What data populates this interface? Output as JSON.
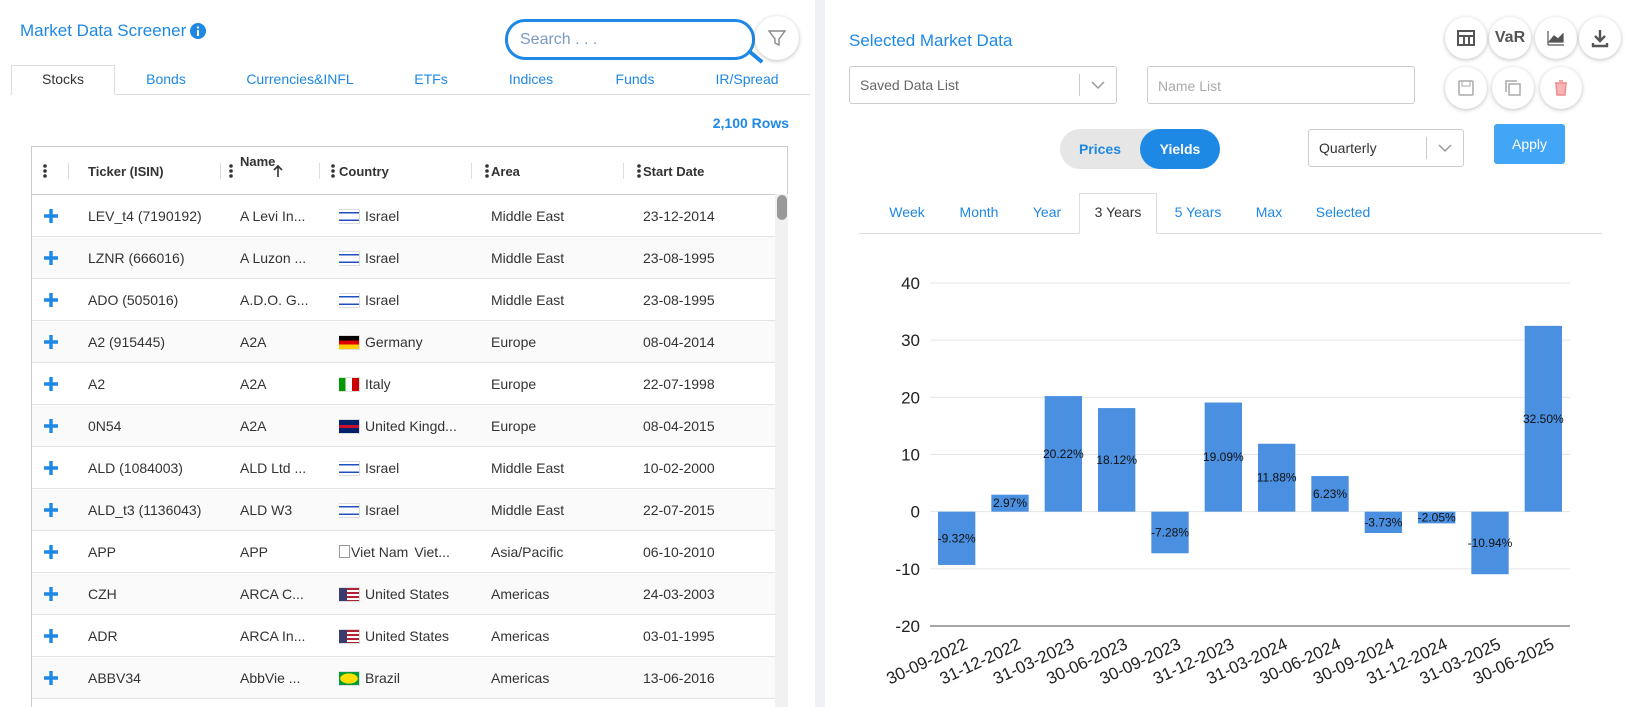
{
  "left": {
    "title": "Market Data Screener",
    "search_placeholder": "Search . . .",
    "tabs": [
      "Stocks",
      "Bonds",
      "Currencies&INFL",
      "ETFs",
      "Indices",
      "Funds",
      "IR/Spread"
    ],
    "active_tab": 0,
    "rows_count": "2,100 Rows",
    "table": {
      "columns": [
        "Ticker (ISIN)",
        "Name",
        "Country",
        "Area",
        "Start Date"
      ],
      "sort_column": 1,
      "rows": [
        [
          "LEV_t4 (7190192)",
          "A Levi In...",
          "Israel",
          "Middle East",
          "23-12-2014"
        ],
        [
          "LZNR (666016)",
          "A Luzon ...",
          "Israel",
          "Middle East",
          "23-08-1995"
        ],
        [
          "ADO (505016)",
          "A.D.O. G...",
          "Israel",
          "Middle East",
          "23-08-1995"
        ],
        [
          "A2 (915445)",
          "A2A",
          "Germany",
          "Europe",
          "08-04-2014"
        ],
        [
          "A2",
          "A2A",
          "Italy",
          "Europe",
          "22-07-1998"
        ],
        [
          "0N54",
          "A2A",
          "United Kingd...",
          "Europe",
          "08-04-2015"
        ],
        [
          "ALD (1084003)",
          "ALD Ltd ...",
          "Israel",
          "Middle East",
          "10-02-2000"
        ],
        [
          "ALD_t3 (1136043)",
          "ALD W3",
          "Israel",
          "Middle East",
          "22-07-2015"
        ],
        [
          "APP",
          "APP",
          "Viet...",
          "Asia/Pacific",
          "06-10-2010"
        ],
        [
          "CZH",
          "ARCA C...",
          "United States",
          "Americas",
          "24-03-2003"
        ],
        [
          "ADR",
          "ARCA In...",
          "United States",
          "Americas",
          "03-01-1995"
        ],
        [
          "ABBV34",
          "AbbVie ...",
          "Brazil",
          "Americas",
          "13-06-2016"
        ]
      ],
      "broken_flag": {
        "row": 8,
        "alt": "Viet Nam"
      }
    }
  },
  "right": {
    "title": "Selected Market Data",
    "var_button": "VaR",
    "saved_list_placeholder": "Saved Data List",
    "name_list_placeholder": "Name List",
    "mode_toggle": [
      "Prices",
      "Yields"
    ],
    "active_mode": 1,
    "period": "Quarterly",
    "apply": "Apply",
    "ranges": [
      "Week",
      "Month",
      "Year",
      "3 Years",
      "5 Years",
      "Max",
      "Selected"
    ],
    "active_range": 3
  },
  "chart_data": {
    "type": "bar",
    "categories": [
      "30-09-2022",
      "31-12-2022",
      "31-03-2023",
      "30-06-2023",
      "30-09-2023",
      "31-12-2023",
      "31-03-2024",
      "30-06-2024",
      "30-09-2024",
      "31-12-2024",
      "31-03-2025",
      "30-06-2025"
    ],
    "values": [
      -9.32,
      2.97,
      20.22,
      18.12,
      -7.28,
      19.09,
      11.88,
      6.23,
      -3.73,
      -2.05,
      -10.94,
      32.5
    ],
    "value_labels": [
      "-9.32%",
      "2.97%",
      "20.22%",
      "18.12%",
      "-7.28%",
      "19.09%",
      "11.88%",
      "6.23%",
      "-3.73%",
      "-2.05%",
      "-10.94%",
      "32.50%"
    ],
    "color": "#4a8fe0",
    "ylim": [
      -20,
      40
    ],
    "yticks": [
      -20,
      -10,
      0,
      10,
      20,
      30,
      40
    ],
    "grid": true
  }
}
